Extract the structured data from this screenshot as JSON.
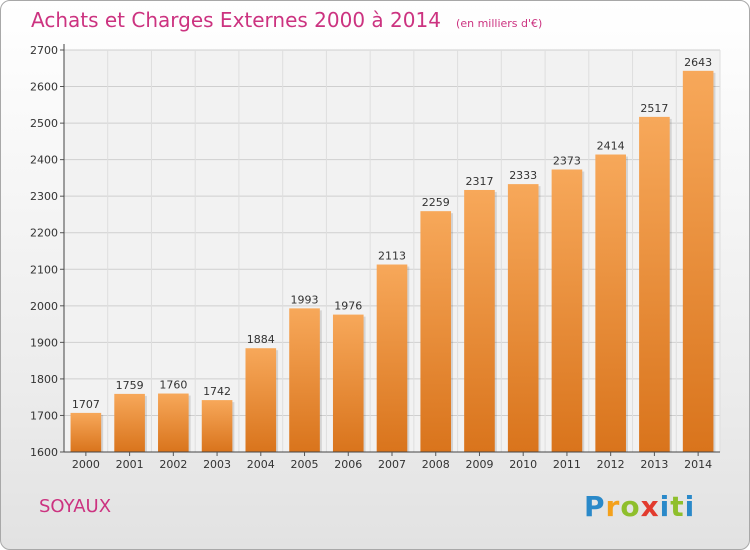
{
  "header": {
    "title": "Achats et Charges Externes 2000 à 2014",
    "subtitle": "(en milliers d'€)"
  },
  "footer": {
    "commune": "SOYAUX",
    "logo": "Proxiti"
  },
  "colors": {
    "title": "#cc3380",
    "bar_top": "#f7a85a",
    "bar_bottom": "#d9741c"
  },
  "chart_data": {
    "type": "bar",
    "title": "Achats et Charges Externes 2000 à 2014",
    "subtitle": "(en milliers d'€)",
    "categories": [
      "2000",
      "2001",
      "2002",
      "2003",
      "2004",
      "2005",
      "2006",
      "2007",
      "2008",
      "2009",
      "2010",
      "2011",
      "2012",
      "2013",
      "2014"
    ],
    "values": [
      1707,
      1759,
      1760,
      1742,
      1884,
      1993,
      1976,
      2113,
      2259,
      2317,
      2333,
      2373,
      2414,
      2517,
      2643
    ],
    "ylim": [
      1600,
      2700
    ],
    "yticks": [
      1600,
      1700,
      1800,
      1900,
      2000,
      2100,
      2200,
      2300,
      2400,
      2500,
      2600,
      2700
    ],
    "grid": true,
    "data_labels": true
  }
}
